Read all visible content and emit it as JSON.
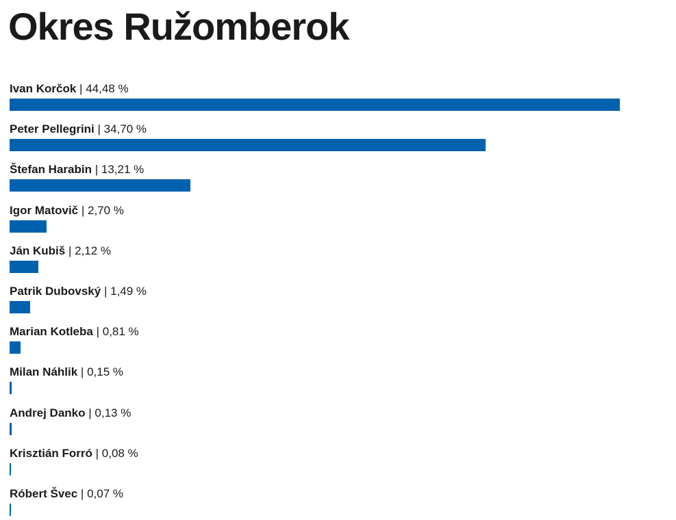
{
  "page": {
    "title": "Okres Ružomberok"
  },
  "chart_data": {
    "type": "bar",
    "orientation": "horizontal",
    "title": "Okres Ružomberok",
    "bar_color": "#0061ae",
    "xlim": [
      0,
      48
    ],
    "grid": false,
    "legend": "none",
    "value_suffix": " %",
    "separator": "|",
    "categories": [
      "Ivan Korčok",
      "Peter Pellegrini",
      "Štefan Harabin",
      "Igor Matovič",
      "Ján Kubiš",
      "Patrik Dubovský",
      "Marian Kotleba",
      "Milan Náhlik",
      "Andrej Danko",
      "Krisztián Forró",
      "Róbert Švec"
    ],
    "values": [
      44.48,
      34.7,
      13.21,
      2.7,
      2.12,
      1.49,
      0.81,
      0.15,
      0.13,
      0.08,
      0.07
    ],
    "value_labels": [
      "44,48 %",
      "34,70 %",
      "13,21 %",
      "2,70 %",
      "2,12 %",
      "1,49 %",
      "0,81 %",
      "0,15 %",
      "0,13 %",
      "0,08 %",
      "0,07 %"
    ]
  }
}
